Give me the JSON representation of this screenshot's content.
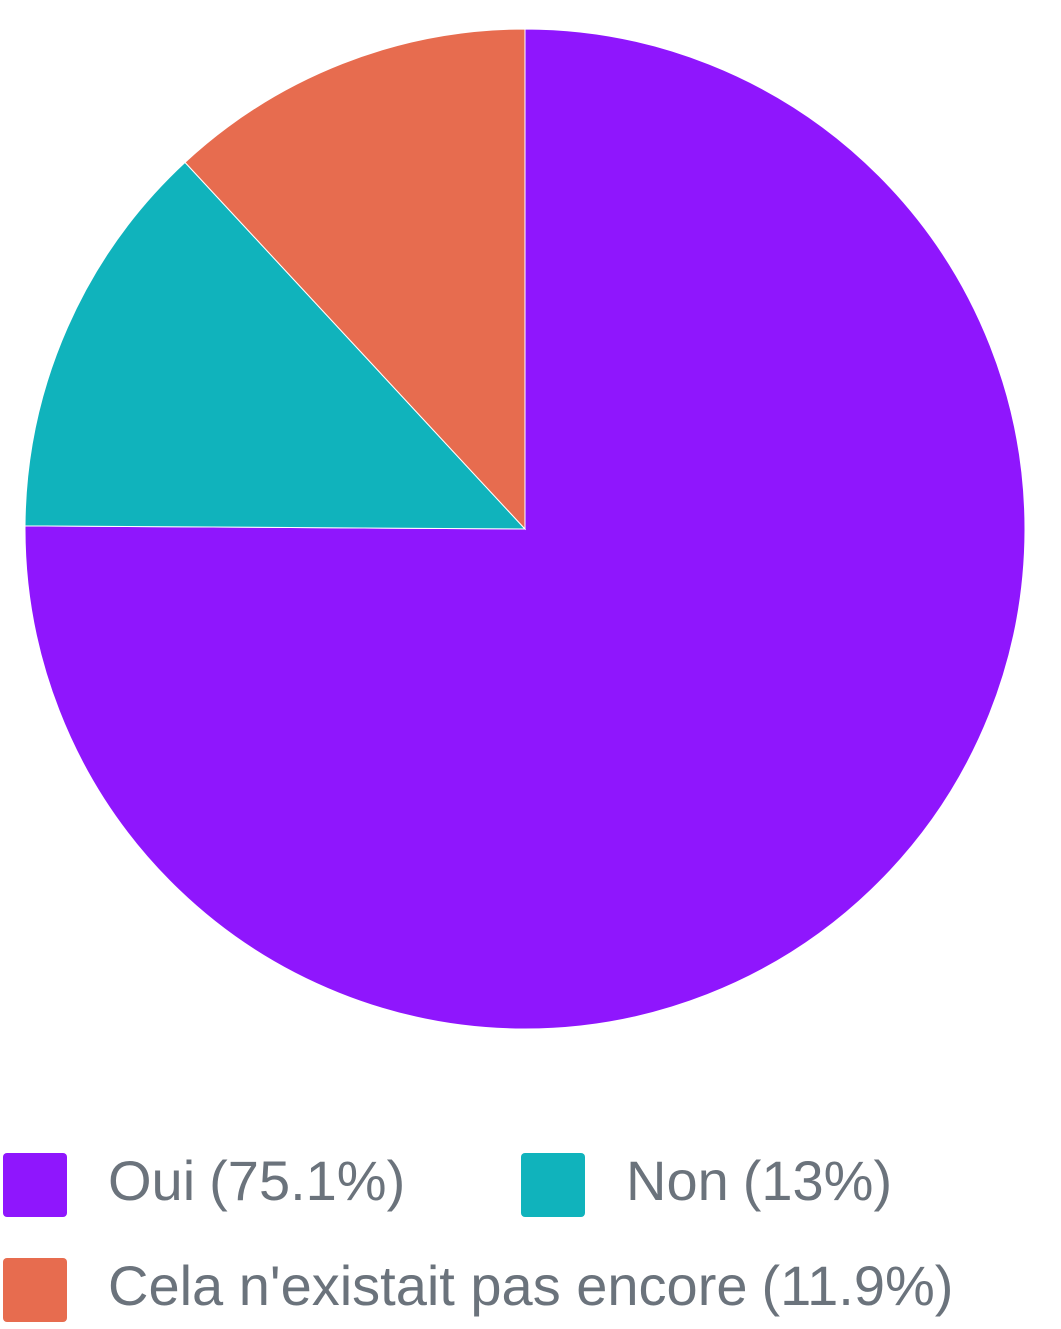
{
  "chart_data": {
    "type": "pie",
    "categories": [
      "Oui",
      "Non",
      "Cela n'existait pas encore"
    ],
    "values": [
      75.1,
      13,
      11.9
    ],
    "value_labels": [
      "(75.1%)",
      "(13%)",
      "(11.9%)"
    ],
    "colors": [
      "#8f16fd",
      "#10b3bc",
      "#e76c4f"
    ],
    "legend": "bottom"
  }
}
